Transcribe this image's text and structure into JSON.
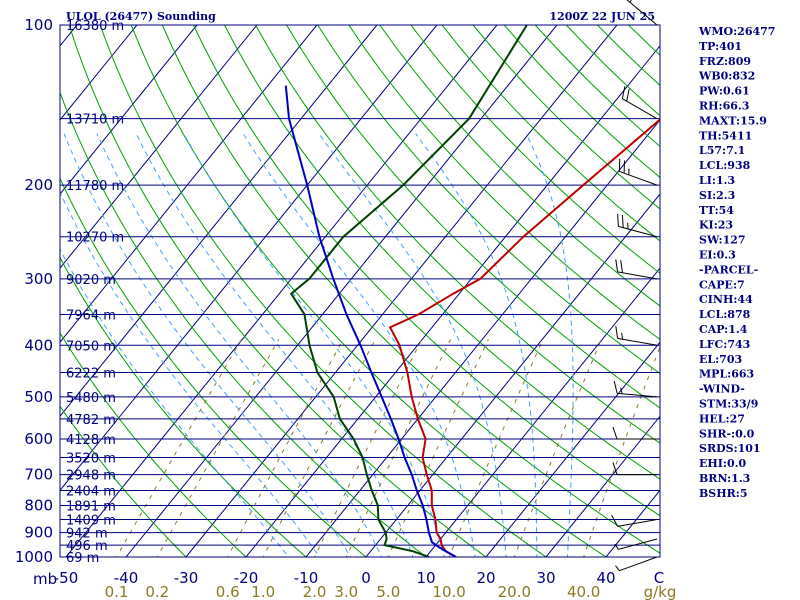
{
  "header": {
    "station": "ULOL (26477) Sounding",
    "time": "1200Z 22 JUN 25"
  },
  "indices": [
    "WMO:26477",
    "TP:401",
    "FRZ:809",
    "WB0:832",
    "PW:0.61",
    "RH:66.3",
    "MAXT:15.9",
    "TH:5411",
    "L57:7.1",
    "LCL:938",
    "LI:1.3",
    "SI:2.3",
    "TT:54",
    "KI:23",
    "SW:127",
    "EI:0.3",
    "-PARCEL-",
    "CAPE:7",
    "CINH:44",
    "LCL:878",
    "CAP:1.4",
    "LFC:743",
    "EL:703",
    "MPL:663",
    "-WIND-",
    "STM:33/9",
    "HEL:27",
    "SHR-:0.0",
    "SRDS:101",
    "EHI:0.0",
    "BRN:1.3",
    "BSHR:5"
  ],
  "colors": {
    "isobar": "#000080",
    "isotherm": "#000080",
    "dry_adiabat": "#00a000",
    "moist_adiabat": "#40a0ff",
    "mixing_ratio": "#8b7a20",
    "temperature": "#c00000",
    "dewpoint": "#004000",
    "parcel": "#0000c0",
    "wind": "#000000",
    "text": "#000080"
  },
  "chart_data": {
    "type": "line",
    "title": "ULOL (26477) Sounding",
    "subtitle": "1200Z 22 JUN 25",
    "xlabel": "",
    "ylabel": "mb",
    "x_unit_secondary": "g/kg",
    "temperature_ticks": [
      -50,
      -40,
      -30,
      -20,
      -10,
      0,
      10,
      20,
      30,
      40
    ],
    "temperature_tick_labels": [
      "-50",
      "-40",
      "-30",
      "-20",
      "-10",
      "0",
      "10",
      "20",
      "30",
      "40",
      "C"
    ],
    "xlim": [
      -50,
      50
    ],
    "pressure_levels": [
      100,
      200,
      300,
      400,
      500,
      600,
      700,
      800,
      900,
      1000
    ],
    "ylim": [
      1000,
      100
    ],
    "y_scale": "log",
    "heights_m": [
      {
        "p": 100,
        "h": "16380 m"
      },
      {
        "p": 150,
        "h": "13710 m"
      },
      {
        "p": 200,
        "h": "11780 m"
      },
      {
        "p": 250,
        "h": "10270 m"
      },
      {
        "p": 300,
        "h": "9020 m"
      },
      {
        "p": 350,
        "h": "7964 m"
      },
      {
        "p": 400,
        "h": "7050 m"
      },
      {
        "p": 450,
        "h": "6222 m"
      },
      {
        "p": 500,
        "h": "5480 m"
      },
      {
        "p": 550,
        "h": "4782 m"
      },
      {
        "p": 600,
        "h": "4128 m"
      },
      {
        "p": 650,
        "h": "3520 m"
      },
      {
        "p": 700,
        "h": "2948 m"
      },
      {
        "p": 750,
        "h": "2404 m"
      },
      {
        "p": 800,
        "h": "1891 m"
      },
      {
        "p": 850,
        "h": "1409 m"
      },
      {
        "p": 900,
        "h": "942 m"
      },
      {
        "p": 950,
        "h": "496 m"
      },
      {
        "p": 1000,
        "h": "69 m"
      }
    ],
    "mixing_ratio_labels": [
      "0.1",
      "0.2",
      "0.6",
      "1.0",
      "2.0",
      "3.0",
      "5.0",
      "10.0",
      "20.0",
      "40.0",
      "g/kg"
    ],
    "series": [
      {
        "name": "Temperature",
        "points": [
          [
            1000,
            15
          ],
          [
            975,
            12.5
          ],
          [
            950,
            11
          ],
          [
            925,
            10
          ],
          [
            900,
            8.5
          ],
          [
            850,
            6.5
          ],
          [
            800,
            4
          ],
          [
            750,
            2
          ],
          [
            700,
            -1
          ],
          [
            650,
            -4
          ],
          [
            600,
            -6
          ],
          [
            550,
            -10
          ],
          [
            500,
            -14
          ],
          [
            450,
            -18
          ],
          [
            400,
            -23
          ],
          [
            370,
            -27
          ],
          [
            350,
            -24
          ],
          [
            320,
            -21
          ],
          [
            300,
            -18.5
          ],
          [
            250,
            -17
          ],
          [
            200,
            -14
          ],
          [
            150,
            -10
          ],
          [
            100,
            -3
          ]
        ]
      },
      {
        "name": "Dewpoint",
        "points": [
          [
            1000,
            10.5
          ],
          [
            975,
            7
          ],
          [
            950,
            1.5
          ],
          [
            925,
            1
          ],
          [
            900,
            0
          ],
          [
            850,
            -3
          ],
          [
            800,
            -5
          ],
          [
            750,
            -8
          ],
          [
            700,
            -11
          ],
          [
            650,
            -14
          ],
          [
            600,
            -18
          ],
          [
            550,
            -23
          ],
          [
            500,
            -27
          ],
          [
            450,
            -33
          ],
          [
            400,
            -38
          ],
          [
            350,
            -43
          ],
          [
            320,
            -48
          ],
          [
            300,
            -47
          ],
          [
            250,
            -47
          ],
          [
            200,
            -44
          ],
          [
            150,
            -42
          ],
          [
            100,
            -45
          ]
        ]
      },
      {
        "name": "Parcel",
        "points": [
          [
            1000,
            15
          ],
          [
            960,
            11
          ],
          [
            938,
            9
          ],
          [
            900,
            7.2
          ],
          [
            850,
            5
          ],
          [
            800,
            2.5
          ],
          [
            750,
            -0.5
          ],
          [
            700,
            -3.5
          ],
          [
            650,
            -7
          ],
          [
            600,
            -10.5
          ],
          [
            550,
            -14.5
          ],
          [
            500,
            -19
          ],
          [
            450,
            -24
          ],
          [
            400,
            -29.5
          ],
          [
            350,
            -36
          ],
          [
            300,
            -43
          ],
          [
            250,
            -51
          ],
          [
            200,
            -60
          ],
          [
            150,
            -72
          ],
          [
            130,
            -77
          ]
        ]
      }
    ],
    "wind_barbs": [
      {
        "p": 1000,
        "dir": 250,
        "spd": 5
      },
      {
        "p": 925,
        "dir": 255,
        "spd": 5
      },
      {
        "p": 850,
        "dir": 260,
        "spd": 10
      },
      {
        "p": 700,
        "dir": 270,
        "spd": 10
      },
      {
        "p": 600,
        "dir": 270,
        "spd": 10
      },
      {
        "p": 500,
        "dir": 275,
        "spd": 15
      },
      {
        "p": 400,
        "dir": 280,
        "spd": 15
      },
      {
        "p": 300,
        "dir": 280,
        "spd": 20
      },
      {
        "p": 250,
        "dir": 285,
        "spd": 25
      },
      {
        "p": 200,
        "dir": 290,
        "spd": 25
      },
      {
        "p": 150,
        "dir": 300,
        "spd": 20
      },
      {
        "p": 100,
        "dir": 310,
        "spd": 15
      }
    ],
    "grid": true,
    "legend": "none"
  }
}
